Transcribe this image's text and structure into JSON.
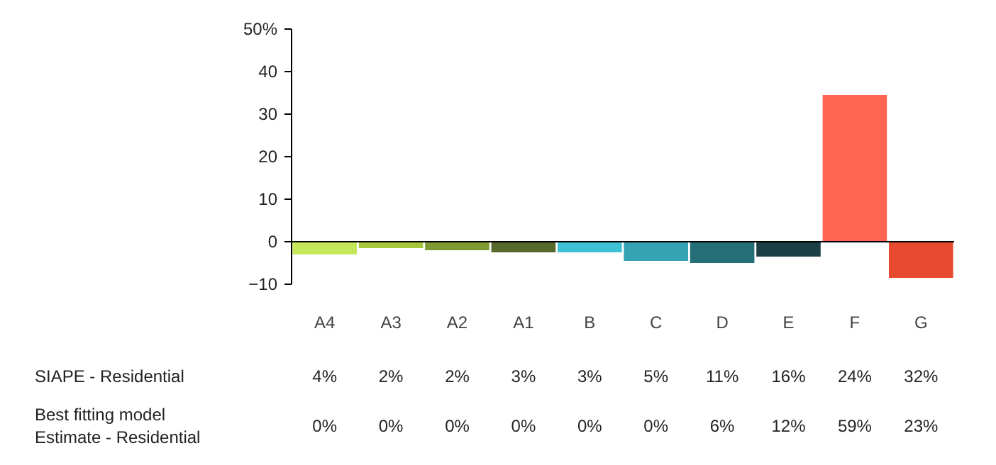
{
  "chart_data": {
    "type": "bar",
    "categories": [
      "A4",
      "A3",
      "A2",
      "A1",
      "B",
      "C",
      "D",
      "E",
      "F",
      "G"
    ],
    "values": [
      -3,
      -1.5,
      -2,
      -2.5,
      -2.5,
      -4.5,
      -5,
      -3.5,
      34.5,
      -8.5
    ],
    "colors": [
      "#c5e85a",
      "#a8c83c",
      "#7f9a32",
      "#56692a",
      "#3ec1d3",
      "#35a3b3",
      "#256f78",
      "#1c3f45",
      "#ff6550",
      "#e84a30"
    ],
    "ylim": [
      -10,
      50
    ],
    "yticks": [
      -10,
      0,
      10,
      20,
      30,
      40,
      {
        "value": 50,
        "label": "50%"
      }
    ],
    "annotations": [
      "SIAPE - Residential",
      "4%",
      "2%",
      "2%",
      "3%",
      "3%",
      "5%",
      "11%",
      "16%",
      "24%",
      "32%",
      "Best fitting model\nEstimate - Residential",
      "0%",
      "0%",
      "0%",
      "0%",
      "0%",
      "0%",
      "6%",
      "12%",
      "59%",
      "23%"
    ]
  }
}
